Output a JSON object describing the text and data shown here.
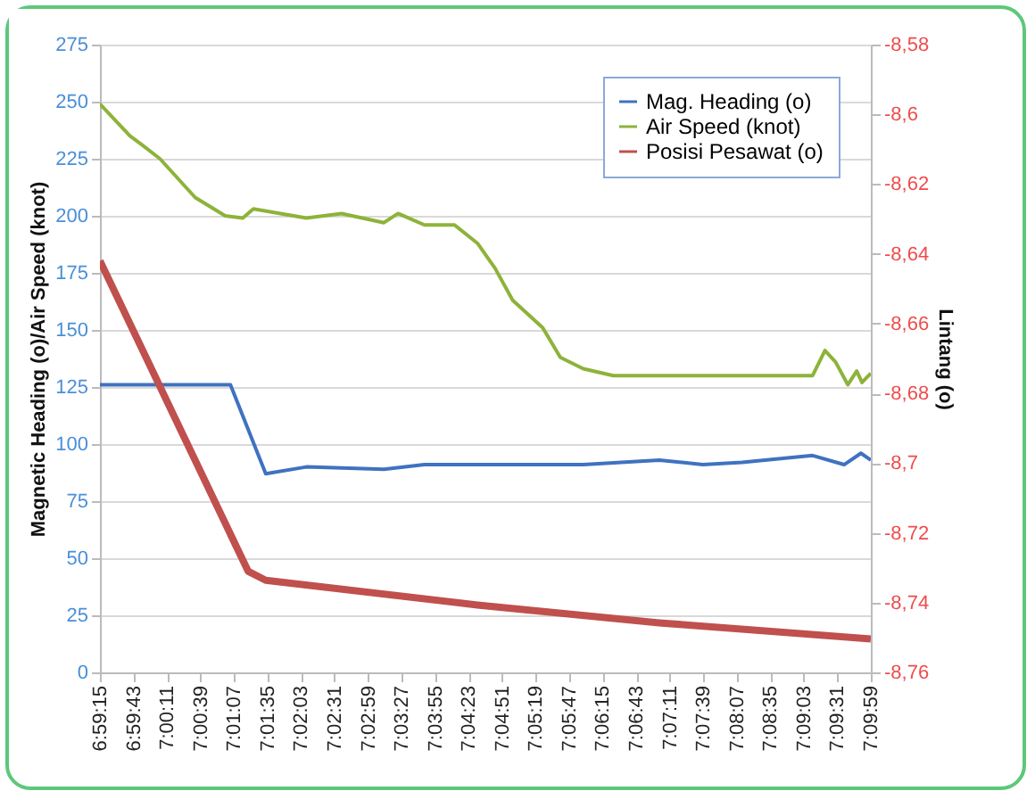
{
  "chart_data": {
    "type": "line",
    "ylabel": "Magnetic Heading (o)/Air Speed (knot)",
    "y2label": "Lintang (o)",
    "xlim": [
      6.9875,
      7.1664
    ],
    "xticks": [
      {
        "value": 6.9875,
        "label": "6:59:15"
      },
      {
        "value": 6.995278,
        "label": "6:59:43"
      },
      {
        "value": 7.003056,
        "label": "7:00:11"
      },
      {
        "value": 7.010833,
        "label": "7:00:39"
      },
      {
        "value": 7.018611,
        "label": "7:01:07"
      },
      {
        "value": 7.026389,
        "label": "7:01:35"
      },
      {
        "value": 7.034167,
        "label": "7:02:03"
      },
      {
        "value": 7.041944,
        "label": "7:02:31"
      },
      {
        "value": 7.049722,
        "label": "7:02:59"
      },
      {
        "value": 7.0575,
        "label": "7:03:27"
      },
      {
        "value": 7.065278,
        "label": "7:03:55"
      },
      {
        "value": 7.073056,
        "label": "7:04:23"
      },
      {
        "value": 7.080833,
        "label": "7:04:51"
      },
      {
        "value": 7.088611,
        "label": "7:05:19"
      },
      {
        "value": 7.096389,
        "label": "7:05:47"
      },
      {
        "value": 7.104167,
        "label": "7:06:15"
      },
      {
        "value": 7.111944,
        "label": "7:06:43"
      },
      {
        "value": 7.119722,
        "label": "7:07:11"
      },
      {
        "value": 7.1275,
        "label": "7:07:39"
      },
      {
        "value": 7.135278,
        "label": "7:08:07"
      },
      {
        "value": 7.143056,
        "label": "7:08:35"
      },
      {
        "value": 7.150833,
        "label": "7:09:03"
      },
      {
        "value": 7.158611,
        "label": "7:09:31"
      },
      {
        "value": 7.166389,
        "label": "7:09:59"
      }
    ],
    "ylim": [
      0,
      275
    ],
    "yticks": [
      0,
      25,
      50,
      75,
      100,
      125,
      150,
      175,
      200,
      225,
      250,
      275
    ],
    "y2lim": [
      -8.76,
      -8.58
    ],
    "y2ticks": [
      {
        "value": -8.76,
        "label": "-8,76"
      },
      {
        "value": -8.74,
        "label": "-8,74"
      },
      {
        "value": -8.72,
        "label": "-8,72"
      },
      {
        "value": -8.7,
        "label": "-8,7"
      },
      {
        "value": -8.68,
        "label": "-8,68"
      },
      {
        "value": -8.66,
        "label": "-8,66"
      },
      {
        "value": -8.64,
        "label": "-8,64"
      },
      {
        "value": -8.62,
        "label": "-8,62"
      },
      {
        "value": -8.6,
        "label": "-8,6"
      },
      {
        "value": -8.58,
        "label": "-8,58"
      }
    ],
    "grid": "y",
    "legend": "top right",
    "series": [
      {
        "name": "Mag. Heading (o)",
        "color": "#3f72c0",
        "x": [
          6.9875,
          7.0,
          7.01,
          7.01779,
          7.02598,
          7.0354,
          7.0534,
          7.0628,
          7.0793,
          7.0997,
          7.1173,
          7.1274,
          7.1365,
          7.1529,
          7.1602,
          7.1641,
          7.1664
        ],
        "values": [
          126,
          126,
          126,
          126,
          87,
          90,
          89,
          91,
          91,
          91,
          93,
          91,
          92,
          95,
          91,
          96,
          93
        ]
      },
      {
        "name": "Air Speed (knot)",
        "color": "#8db33a",
        "x": [
          6.9875,
          6.99446,
          6.99732,
          7.00142,
          7.00961,
          7.01656,
          7.02066,
          7.02311,
          7.0354,
          7.04358,
          7.05341,
          7.05668,
          7.06282,
          7.06978,
          7.0751,
          7.0792,
          7.08329,
          7.09025,
          7.09434,
          7.09967,
          7.10663,
          7.11727,
          7.13651,
          7.15289,
          7.15575,
          7.15821,
          7.16107,
          7.16312,
          7.16435,
          7.16639
        ],
        "values": [
          249,
          235,
          231,
          225,
          208,
          200,
          199,
          203,
          199,
          201,
          197,
          201,
          196,
          196,
          188,
          177,
          163,
          151,
          138,
          133,
          130,
          130,
          130,
          130,
          141,
          136,
          126,
          132,
          127,
          131
        ]
      },
      {
        "name": "Posisi Pesawat (o)",
        "color": "#c0504d",
        "axis": "y2",
        "x": [
          6.9875,
          7.02189,
          7.02598,
          7.0751,
          7.11727,
          7.16639
        ],
        "values": [
          -8.642,
          -8.731,
          -8.7336,
          -8.7407,
          -8.7458,
          -8.7504
        ]
      }
    ]
  }
}
